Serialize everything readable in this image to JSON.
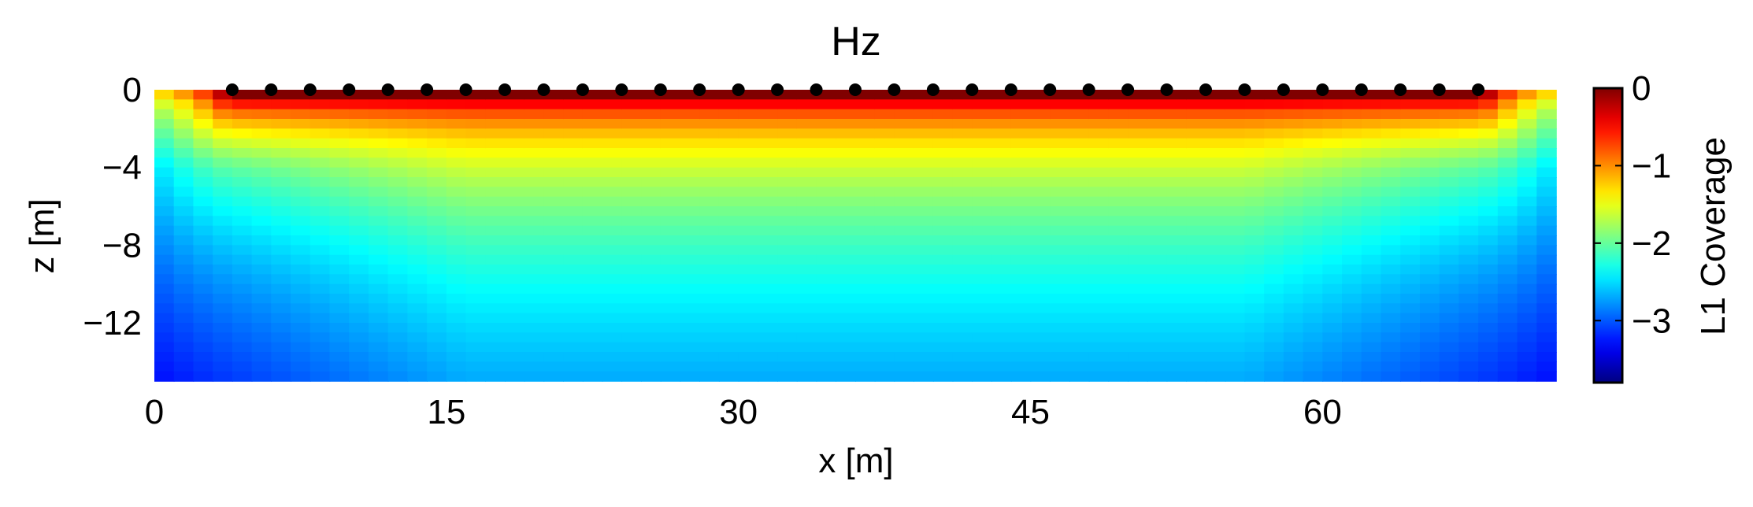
{
  "chart_data": {
    "type": "heatmap",
    "title": "Hz",
    "xlabel": "x [m]",
    "ylabel": "z [m]",
    "colorbar_label": "L1 Coverage",
    "colormap": "jet",
    "xlim": [
      0,
      72
    ],
    "ylim": [
      -15,
      0
    ],
    "clim": [
      -3.8,
      0
    ],
    "x_ticks": [
      0,
      15,
      30,
      45,
      60
    ],
    "x_tick_labels": [
      "0",
      "15",
      "30",
      "45",
      "60"
    ],
    "y_ticks": [
      0,
      -4,
      -8,
      -12
    ],
    "y_tick_labels": [
      "0",
      "−4",
      "−8",
      "−12"
    ],
    "colorbar_ticks": [
      0,
      -1,
      -2,
      -3
    ],
    "colorbar_tick_labels": [
      "0",
      "−1",
      "−2",
      "−3"
    ],
    "grid": false,
    "electrodes": {
      "x": [
        4,
        6,
        8,
        10,
        12,
        14,
        16,
        18,
        20,
        22,
        24,
        26,
        28,
        30,
        32,
        34,
        36,
        38,
        40,
        42,
        44,
        46,
        48,
        50,
        52,
        54,
        56,
        58,
        60,
        62,
        64,
        66,
        68
      ],
      "z": 0,
      "color": "#000000"
    },
    "coverage_profile": {
      "description_values": "approximate L1 coverage (log10) at the profile centre",
      "depth": [
        0,
        -0.5,
        -1,
        -2,
        -3,
        -5,
        -8,
        -10,
        -12,
        -15
      ],
      "value": [
        -0.1,
        -0.3,
        -0.6,
        -1.0,
        -1.4,
        -1.8,
        -2.2,
        -2.5,
        -2.8,
        -3.1
      ]
    }
  }
}
